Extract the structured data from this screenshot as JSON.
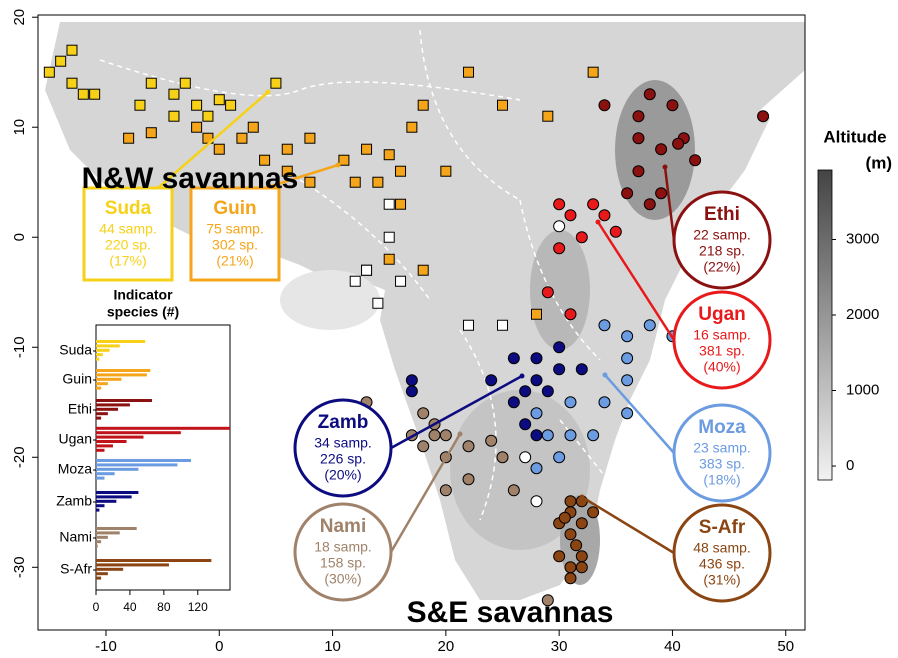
{
  "chart_data": [
    {
      "type": "scatter",
      "xlim": [
        -16,
        51.7
      ],
      "ylim": [
        -35.7,
        20.2
      ],
      "xticks": [
        -10,
        0,
        10,
        20,
        30,
        40,
        50
      ],
      "yticks": [
        20,
        10,
        0,
        -10,
        -20,
        -30
      ],
      "annotations": [
        "N&W savannas",
        "S&E savannas"
      ],
      "series": [
        {
          "name": "Suda",
          "color": "#f7d117",
          "marker": "square",
          "stats": [
            "44 samp.",
            "220 sp.",
            "(17%)"
          ],
          "x": [
            -15,
            -13,
            -11,
            -7,
            -4,
            -2,
            -1,
            -4,
            -3,
            5,
            1,
            -13,
            -6,
            -12,
            -14,
            0
          ],
          "y": [
            15,
            14,
            13,
            12,
            13,
            12,
            11,
            11,
            14,
            14,
            12,
            17,
            14,
            13,
            16,
            12.5
          ]
        },
        {
          "name": "Guin",
          "color": "#f5a519",
          "marker": "square",
          "stats": [
            "75 samp.",
            "302 sp.",
            "(21%)"
          ],
          "x": [
            -6,
            -8,
            -2,
            -1,
            0,
            2,
            4,
            6,
            8,
            11,
            13,
            15,
            16,
            14,
            12,
            8,
            6,
            3,
            17,
            25,
            29,
            33,
            22,
            20,
            16,
            18,
            15,
            13,
            28,
            18
          ],
          "y": [
            9.5,
            9,
            10,
            9,
            8,
            9,
            7,
            8,
            9,
            7,
            8,
            7.5,
            6,
            5,
            5,
            5,
            6,
            10,
            10,
            12,
            11,
            15,
            15,
            6,
            3,
            -3,
            -2,
            -3,
            -7,
            12
          ]
        },
        {
          "name": "Ethi",
          "color": "#8b1010",
          "marker": "circle",
          "stats": [
            "22 samp.",
            "218 sp.",
            "(22%)"
          ],
          "x": [
            40,
            37,
            38,
            41,
            39,
            42,
            37,
            36,
            38,
            39,
            48,
            37,
            34,
            40.5
          ],
          "y": [
            12,
            11,
            13,
            9,
            8,
            7,
            6,
            4,
            3,
            4,
            11,
            9,
            12,
            8.5
          ]
        },
        {
          "name": "Ugan",
          "color": "#e8191a",
          "marker": "circle",
          "stats": [
            "16 samp.",
            "381 sp.",
            "(40%)"
          ],
          "x": [
            34,
            31,
            32,
            30,
            33,
            30,
            29,
            31,
            35
          ],
          "y": [
            2,
            2,
            0,
            -1,
            3,
            3,
            -5,
            -7,
            0.5
          ]
        },
        {
          "name": "Moza",
          "color": "#6b9be0",
          "marker": "circle",
          "stats": [
            "23 samp.",
            "383 sp.",
            "(18%)"
          ],
          "x": [
            34,
            36,
            38,
            40,
            36,
            34,
            36,
            31,
            31,
            28,
            29,
            33,
            30,
            28,
            36
          ],
          "y": [
            -8,
            -9,
            -8,
            -9,
            -13,
            -15,
            -16,
            -15,
            -18,
            -16,
            -18,
            -18,
            -20,
            -21,
            -11
          ]
        },
        {
          "name": "Zamb",
          "color": "#0c0c80",
          "marker": "circle",
          "stats": [
            "34 samp.",
            "226 sp.",
            "(20%)"
          ],
          "x": [
            26,
            28,
            28,
            29,
            27,
            30,
            26,
            24,
            17,
            17,
            30,
            32,
            28,
            27
          ],
          "y": [
            -11,
            -11,
            -13,
            -14,
            -14,
            -12,
            -15,
            -13,
            -13,
            -14,
            -10,
            -12,
            -18,
            -17
          ]
        },
        {
          "name": "Nami",
          "color": "#a0826a",
          "marker": "circle",
          "stats": [
            "18 samp.",
            "158 sp.",
            "(30%)"
          ],
          "x": [
            13,
            18,
            19,
            19,
            20,
            17,
            18,
            22,
            24,
            20,
            20,
            26,
            25,
            29,
            22
          ],
          "y": [
            -15,
            -16,
            -17,
            -18,
            -18,
            -18,
            -19,
            -19,
            -18.5,
            -20,
            -23,
            -23,
            -20,
            -33,
            -22
          ]
        },
        {
          "name": "S-Afr",
          "color": "#8b4513",
          "marker": "circle",
          "stats": [
            "48 samp.",
            "436 sp.",
            "(31%)"
          ],
          "x": [
            31,
            32,
            31,
            32,
            31,
            31.5,
            32,
            31,
            30,
            33,
            30,
            31,
            32,
            30.5
          ],
          "y": [
            -24,
            -24,
            -25,
            -26,
            -27,
            -28,
            -29,
            -30,
            -29,
            -25,
            -26,
            -31,
            -30,
            -25.5
          ]
        },
        {
          "color": "#ffffff",
          "marker": "square",
          "x": [
            13,
            12,
            14,
            16,
            15,
            15,
            22,
            25
          ],
          "y": [
            -3,
            -4,
            -6,
            -4,
            0,
            3,
            -8,
            -8
          ]
        },
        {
          "color": "#ffffff",
          "marker": "circle",
          "x": [
            30,
            27,
            28
          ],
          "y": [
            1,
            -20,
            -24
          ]
        }
      ],
      "colorbar": {
        "title": [
          "Altitude",
          "(m)"
        ],
        "ylim": [
          -185,
          3920
        ],
        "yticks": [
          0,
          1000,
          2000,
          3000
        ]
      }
    },
    {
      "type": "bar",
      "orientation": "horizontal",
      "title": [
        "Indicator",
        "species (#)"
      ],
      "categories": [
        "Suda",
        "Guin",
        "Ethi",
        "Ugan",
        "Moza",
        "Zamb",
        "Nami",
        "S-Afr"
      ],
      "groups": [
        {
          "color": "#f7d117",
          "values": [
            58,
            28,
            16,
            8,
            4
          ]
        },
        {
          "color": "#f5a519",
          "values": [
            64,
            60,
            30,
            14,
            6
          ]
        },
        {
          "color": "#8b1010",
          "values": [
            66,
            40,
            26,
            14,
            6
          ]
        },
        {
          "color": "#c0141a",
          "values": [
            158,
            100,
            56,
            36,
            20,
            10
          ]
        },
        {
          "color": "#6b9be0",
          "values": [
            112,
            96,
            50,
            22,
            10
          ]
        },
        {
          "color": "#0c0c80",
          "values": [
            50,
            42,
            24,
            10,
            4
          ]
        },
        {
          "color": "#a0826a",
          "values": [
            48,
            28,
            14,
            6,
            2
          ]
        },
        {
          "color": "#8b4513",
          "values": [
            136,
            86,
            32,
            14,
            6
          ]
        }
      ],
      "xlim": [
        0,
        158
      ],
      "xticks": [
        0,
        40,
        80,
        120
      ]
    }
  ]
}
